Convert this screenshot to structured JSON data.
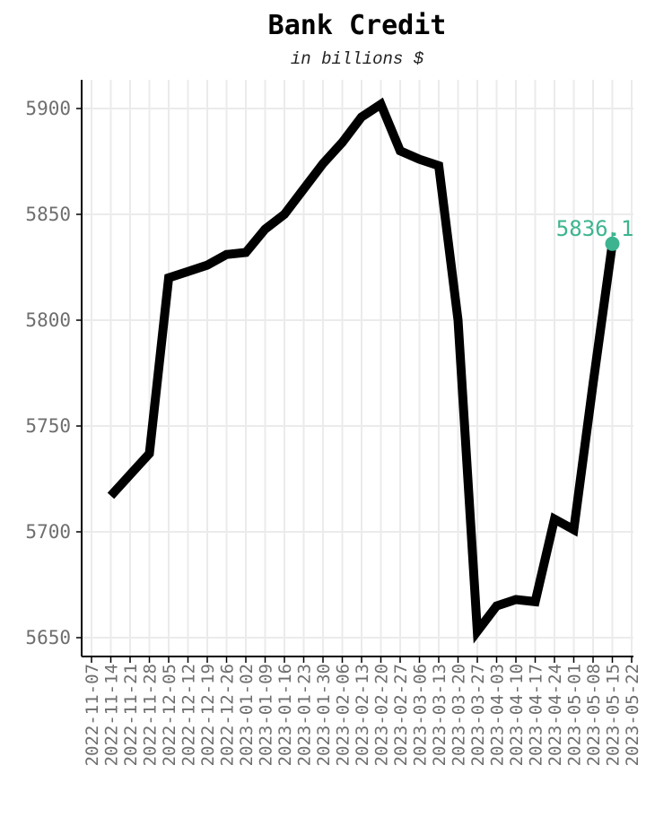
{
  "chart_data": {
    "type": "line",
    "title": "Bank Credit",
    "subtitle": "in billions $",
    "xlabel": "",
    "ylabel": "",
    "ylim": [
      5640,
      5913
    ],
    "yticks": [
      5650,
      5700,
      5750,
      5800,
      5850,
      5900
    ],
    "grid": true,
    "x": [
      "2022-11-07",
      "2022-11-14",
      "2022-11-21",
      "2022-11-28",
      "2022-12-05",
      "2022-12-12",
      "2022-12-19",
      "2022-12-26",
      "2023-01-02",
      "2023-01-09",
      "2023-01-16",
      "2023-01-23",
      "2023-01-30",
      "2023-02-06",
      "2023-02-13",
      "2023-02-20",
      "2023-02-27",
      "2023-03-06",
      "2023-03-13",
      "2023-03-20",
      "2023-03-27",
      "2023-04-03",
      "2023-04-10",
      "2023-04-17",
      "2023-04-24",
      "2023-05-01",
      "2023-05-08",
      "2023-05-15",
      "2023-05-22"
    ],
    "series": [
      {
        "values": [
          null,
          5717,
          5727,
          5737,
          5820,
          5823,
          5826,
          5831,
          5832,
          5843,
          5850,
          5862,
          5874,
          5884,
          5896,
          5902,
          5880,
          5876,
          5873,
          5800,
          5653,
          5665,
          5668,
          5667,
          5706,
          5701,
          5770,
          5836.1,
          null
        ],
        "color": "#000000"
      }
    ],
    "end_label": {
      "text": "5836.1",
      "color": "#3db48f"
    }
  }
}
